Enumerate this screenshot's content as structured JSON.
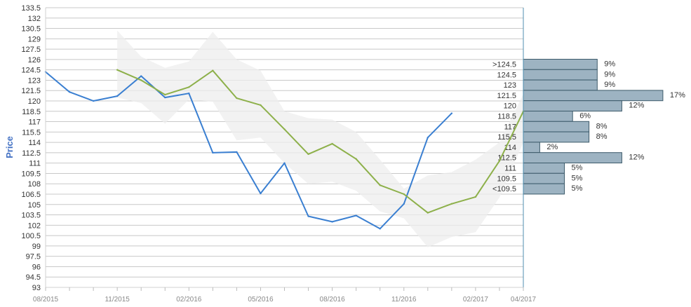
{
  "chart_data": {
    "type": "line",
    "ylabel": "Price",
    "xlabel": "",
    "ylim": [
      93,
      133.5
    ],
    "y_ticks": [
      "133.5",
      "132",
      "130.5",
      "129",
      "127.5",
      "126",
      "124.5",
      "123",
      "121.5",
      "120",
      "118.5",
      "117",
      "115.5",
      "114",
      "112.5",
      "111",
      "109.5",
      "108",
      "106.5",
      "105",
      "103.5",
      "102",
      "100.5",
      "99",
      "97.5",
      "96",
      "94.5",
      "93"
    ],
    "x_ticks": [
      "08/2015",
      "11/2015",
      "02/2016",
      "05/2016",
      "08/2016",
      "11/2016",
      "02/2017",
      "04/2017"
    ],
    "x_tick_months": [
      0,
      3,
      6,
      9,
      12,
      15,
      18,
      20
    ],
    "grid": true,
    "series": [
      {
        "color": "#3a7fd1",
        "x": [
          0,
          1,
          2,
          3,
          4,
          5,
          6,
          7,
          8,
          9,
          10,
          11,
          12,
          13,
          14,
          15,
          16,
          17
        ],
        "values": [
          124.2,
          121.3,
          120.0,
          120.7,
          123.6,
          120.5,
          121.1,
          112.5,
          112.6,
          106.6,
          111.0,
          103.3,
          102.5,
          103.4,
          101.5,
          105.1,
          114.7,
          118.2
        ]
      },
      {
        "color": "#8db04a",
        "x": [
          3,
          4,
          5,
          6,
          7,
          8,
          9,
          10,
          11,
          12,
          13,
          14,
          15,
          16,
          17,
          18,
          19,
          20
        ],
        "values": [
          124.5,
          123.0,
          120.9,
          122.0,
          124.4,
          120.4,
          119.4,
          115.9,
          112.3,
          113.8,
          111.6,
          107.8,
          106.5,
          103.8,
          105.1,
          106.1,
          111.3,
          118.5
        ]
      }
    ],
    "band": {
      "color": "#eeeeee",
      "x": [
        3,
        4,
        5,
        6,
        7,
        8,
        9,
        10,
        11,
        12,
        13,
        14,
        15,
        16,
        17,
        18,
        19,
        20
      ],
      "upper": [
        130.2,
        126.4,
        124.8,
        125.7,
        130.0,
        126.0,
        124.4,
        118.5,
        117.5,
        117.3,
        115.5,
        111.5,
        107.3,
        109.2,
        109.7,
        111.5,
        114.0,
        121.0
      ],
      "lower": [
        120.5,
        119.7,
        116.7,
        120.2,
        119.9,
        114.3,
        114.7,
        111.0,
        108.0,
        108.3,
        107.0,
        104.0,
        103.0,
        98.8,
        100.3,
        101.0,
        106.0,
        114.0
      ]
    },
    "distribution": {
      "color": "#9db3c2",
      "labels": [
        ">124.5",
        "124.5",
        "123",
        "121.5",
        "120",
        "118.5",
        "117",
        "115.5",
        "114",
        "112.5",
        "111",
        "109.5",
        "<109.5"
      ],
      "values": [
        9,
        9,
        9,
        17,
        12,
        6,
        8,
        8,
        2,
        12,
        5,
        5,
        5
      ],
      "value_labels": [
        "9%",
        "9%",
        "9%",
        "17%",
        "12%",
        "6%",
        "8%",
        "8%",
        "2%",
        "12%",
        "5%",
        "5%",
        "5%"
      ]
    }
  }
}
